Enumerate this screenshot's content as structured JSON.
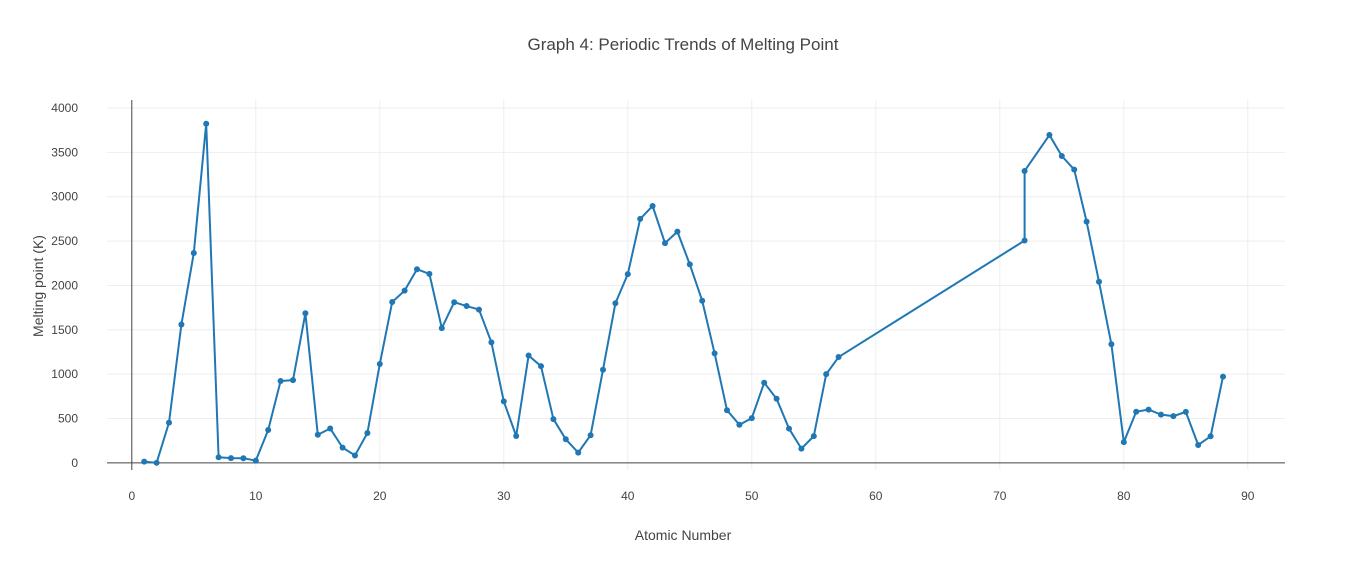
{
  "chart_data": {
    "type": "line",
    "title": "Graph 4: Periodic Trends of Melting Point",
    "xlabel": "Atomic Number",
    "ylabel": "Melting point (K)",
    "xlim": [
      -2,
      93
    ],
    "ylim": [
      -80,
      4090
    ],
    "xticks": [
      0,
      10,
      20,
      30,
      40,
      50,
      60,
      70,
      80,
      90
    ],
    "yticks": [
      0,
      500,
      1000,
      1500,
      2000,
      2500,
      3000,
      3500,
      4000
    ],
    "grid": true,
    "legend": "none",
    "series": [
      {
        "color": "#1f77b4",
        "mode": "lines+markers",
        "points": [
          [
            1,
            14
          ],
          [
            2,
            1
          ],
          [
            3,
            454
          ],
          [
            4,
            1560
          ],
          [
            5,
            2365
          ],
          [
            6,
            3823
          ],
          [
            7,
            63
          ],
          [
            8,
            54
          ],
          [
            9,
            53
          ],
          [
            10,
            25
          ],
          [
            11,
            371
          ],
          [
            12,
            923
          ],
          [
            13,
            933
          ],
          [
            14,
            1687
          ],
          [
            15,
            317
          ],
          [
            16,
            388
          ],
          [
            17,
            172
          ],
          [
            18,
            84
          ],
          [
            19,
            337
          ],
          [
            20,
            1115
          ],
          [
            21,
            1814
          ],
          [
            22,
            1941
          ],
          [
            23,
            2183
          ],
          [
            24,
            2130
          ],
          [
            25,
            1519
          ],
          [
            26,
            1811
          ],
          [
            27,
            1768
          ],
          [
            28,
            1728
          ],
          [
            29,
            1358
          ],
          [
            30,
            693
          ],
          [
            31,
            303
          ],
          [
            32,
            1211
          ],
          [
            33,
            1090
          ],
          [
            34,
            494
          ],
          [
            35,
            266
          ],
          [
            36,
            116
          ],
          [
            37,
            312
          ],
          [
            38,
            1050
          ],
          [
            39,
            1799
          ],
          [
            40,
            2128
          ],
          [
            41,
            2750
          ],
          [
            42,
            2896
          ],
          [
            43,
            2477
          ],
          [
            44,
            2607
          ],
          [
            45,
            2237
          ],
          [
            46,
            1828
          ],
          [
            47,
            1235
          ],
          [
            48,
            594
          ],
          [
            49,
            430
          ],
          [
            50,
            505
          ],
          [
            51,
            904
          ],
          [
            52,
            723
          ],
          [
            53,
            387
          ],
          [
            54,
            161
          ],
          [
            55,
            302
          ],
          [
            56,
            1000
          ],
          [
            57,
            1193
          ],
          [
            72,
            2506
          ],
          [
            72,
            3290
          ],
          [
            74,
            3695
          ],
          [
            75,
            3459
          ],
          [
            76,
            3306
          ],
          [
            77,
            2719
          ],
          [
            78,
            2041
          ],
          [
            79,
            1337
          ],
          [
            80,
            234
          ],
          [
            81,
            577
          ],
          [
            82,
            601
          ],
          [
            83,
            544
          ],
          [
            84,
            527
          ],
          [
            85,
            575
          ],
          [
            86,
            202
          ],
          [
            87,
            300
          ],
          [
            88,
            973
          ]
        ]
      }
    ]
  }
}
